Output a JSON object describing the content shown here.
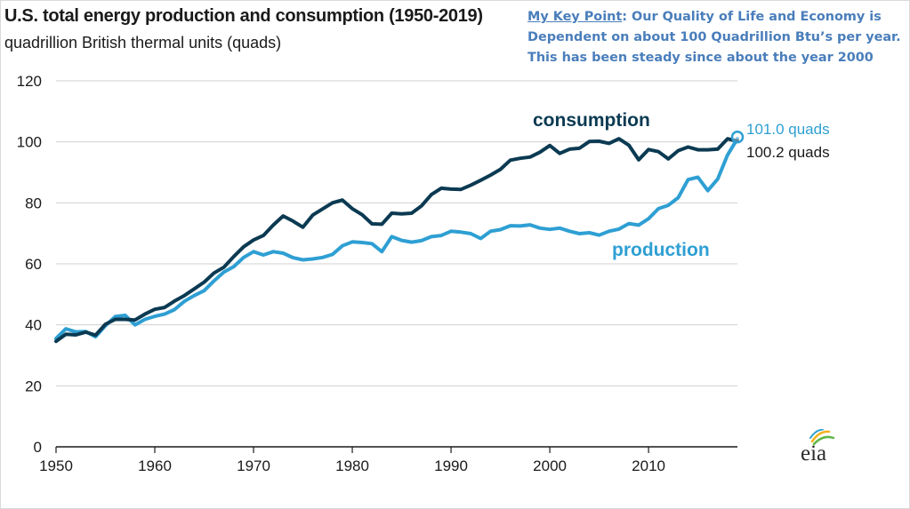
{
  "title": "U.S. total energy production and consumption (1950-2019)",
  "subtitle": "quadrillion British thermal units (quads)",
  "key_point": {
    "heading": "My Key Point",
    "text": ": Our Quality of Life and Economy is Dependent on about 100 Quadrillion Btu’s per year. This has been steady since about the year 2000"
  },
  "logo_text": "eia",
  "colors": {
    "consumption": "#0b3a52",
    "production": "#2e9fd3",
    "grid": "#d0d0d0",
    "key_point": "#4a7ebb"
  },
  "chart_data": {
    "type": "line",
    "xlim": [
      1950,
      2019
    ],
    "ylim": [
      0,
      120
    ],
    "grid": true,
    "x_ticks": [
      1950,
      1960,
      1970,
      1980,
      1990,
      2000,
      2010
    ],
    "y_ticks": [
      0,
      20,
      40,
      60,
      80,
      100,
      120
    ],
    "x": [
      1950,
      1951,
      1952,
      1953,
      1954,
      1955,
      1956,
      1957,
      1958,
      1959,
      1960,
      1961,
      1962,
      1963,
      1964,
      1965,
      1966,
      1967,
      1968,
      1969,
      1970,
      1971,
      1972,
      1973,
      1974,
      1975,
      1976,
      1977,
      1978,
      1979,
      1980,
      1981,
      1982,
      1983,
      1984,
      1985,
      1986,
      1987,
      1988,
      1989,
      1990,
      1991,
      1992,
      1993,
      1994,
      1995,
      1996,
      1997,
      1998,
      1999,
      2000,
      2001,
      2002,
      2003,
      2004,
      2005,
      2006,
      2007,
      2008,
      2009,
      2010,
      2011,
      2012,
      2013,
      2014,
      2015,
      2016,
      2017,
      2018,
      2019
    ],
    "series": [
      {
        "name": "consumption",
        "end_label": "100.2 quads",
        "values": [
          34.6,
          36.9,
          36.7,
          37.6,
          36.6,
          40.2,
          41.8,
          41.8,
          41.6,
          43.5,
          45.1,
          45.7,
          47.8,
          49.6,
          51.8,
          54.0,
          57.0,
          58.9,
          62.4,
          65.6,
          67.8,
          69.3,
          72.7,
          75.7,
          74.0,
          72.0,
          76.0,
          78.0,
          80.0,
          80.9,
          78.1,
          76.1,
          73.1,
          73.0,
          76.6,
          76.4,
          76.6,
          79.0,
          82.7,
          84.8,
          84.5,
          84.4,
          85.8,
          87.4,
          89.1,
          91.0,
          94.0,
          94.6,
          95.0,
          96.6,
          98.8,
          96.2,
          97.6,
          97.9,
          100.1,
          100.2,
          99.5,
          101.0,
          98.9,
          94.1,
          97.5,
          96.8,
          94.4,
          97.1,
          98.3,
          97.4,
          97.4,
          97.6,
          101.0,
          100.2
        ]
      },
      {
        "name": "production",
        "end_label": "101.0 quads",
        "values": [
          35.5,
          38.7,
          37.7,
          37.8,
          36.1,
          39.7,
          42.7,
          43.1,
          40.0,
          41.8,
          42.8,
          43.5,
          45.0,
          47.7,
          49.6,
          51.2,
          54.4,
          57.3,
          59.1,
          62.1,
          64.0,
          62.9,
          64.0,
          63.5,
          62.0,
          61.3,
          61.6,
          62.1,
          63.1,
          65.9,
          67.2,
          67.0,
          66.6,
          64.0,
          68.9,
          67.7,
          67.1,
          67.6,
          68.9,
          69.3,
          70.7,
          70.4,
          69.9,
          68.3,
          70.7,
          71.2,
          72.5,
          72.4,
          72.8,
          71.7,
          71.3,
          71.7,
          70.7,
          69.9,
          70.2,
          69.4,
          70.7,
          71.4,
          73.2,
          72.7,
          74.8,
          78.1,
          79.2,
          81.7,
          87.6,
          88.4,
          84.0,
          87.8,
          95.7,
          101.0
        ]
      }
    ],
    "annotations": [
      "consumption",
      "production"
    ]
  }
}
